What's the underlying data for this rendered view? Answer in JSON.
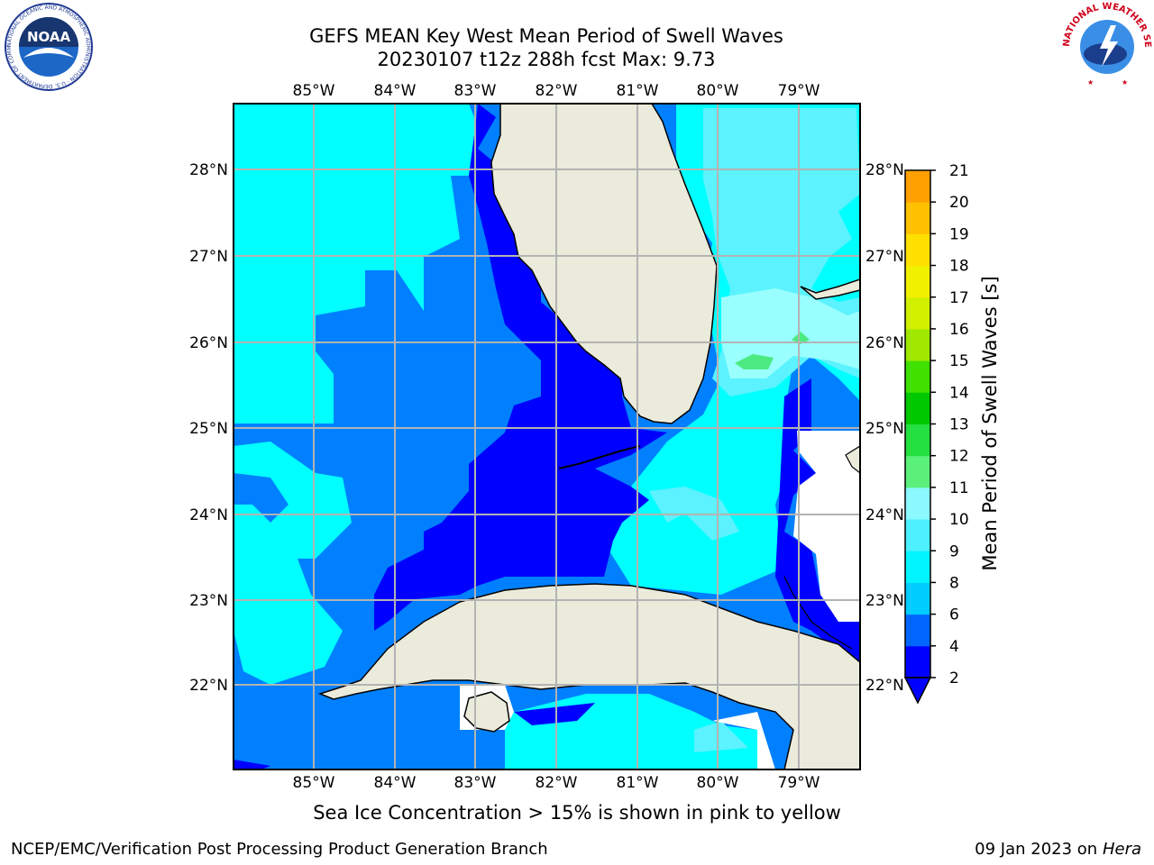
{
  "header": {
    "title_line1": "GEFS MEAN Key West Mean Period of Swell Waves",
    "title_line2": "20230107 t12z 288h fcst   Max: 9.73"
  },
  "logos": {
    "noaa_text": "NOAA",
    "noaa_ring_text": "NATIONAL OCEANIC AND ATMOSPHERIC ADMINISTRATION · U.S. DEPARTMENT OF COMMERCE",
    "nws_ring_text": "NATIONAL WEATHER SERVICE"
  },
  "map": {
    "lon_labels": [
      "85°W",
      "84°W",
      "83°W",
      "82°W",
      "81°W",
      "80°W",
      "79°W"
    ],
    "lat_labels": [
      "28°N",
      "27°N",
      "26°N",
      "25°N",
      "24°N",
      "23°N",
      "22°N"
    ],
    "lon_range": [
      -86.0,
      -78.25
    ],
    "lat_range": [
      21.07,
      28.76
    ],
    "grid": true
  },
  "colorbar": {
    "label": "Mean Period of Swell Waves [s]",
    "ticks": [
      "2",
      "4",
      "6",
      "8",
      "9",
      "10",
      "11",
      "12",
      "13",
      "14",
      "15",
      "16",
      "17",
      "18",
      "19",
      "20",
      "21"
    ],
    "colors": [
      "#0000ff",
      "#0066ff",
      "#00ccff",
      "#00f5ff",
      "#4cf0ff",
      "#8cf8ff",
      "#5af07a",
      "#24e040",
      "#00c800",
      "#40e000",
      "#a0e800",
      "#d0f000",
      "#f0f000",
      "#ffe000",
      "#ffc000",
      "#ffa000",
      "#ff8000",
      "#ff6000",
      "#ff3000",
      "#ff0000"
    ]
  },
  "chart_data": {
    "type": "heatmap",
    "variable": "Mean Period of Swell Waves [s]",
    "max": 9.73,
    "levels": [
      2,
      4,
      6,
      8,
      9,
      10,
      11,
      12,
      13,
      14,
      15,
      16,
      17,
      18,
      19,
      20,
      21
    ]
  },
  "note": "Sea Ice Concentration > 15% is shown in pink to yellow",
  "footer": {
    "left": "NCEP/EMC/Verification Post Processing Product Generation Branch",
    "date": "09 Jan 2023 on ",
    "machine": "Hera"
  }
}
